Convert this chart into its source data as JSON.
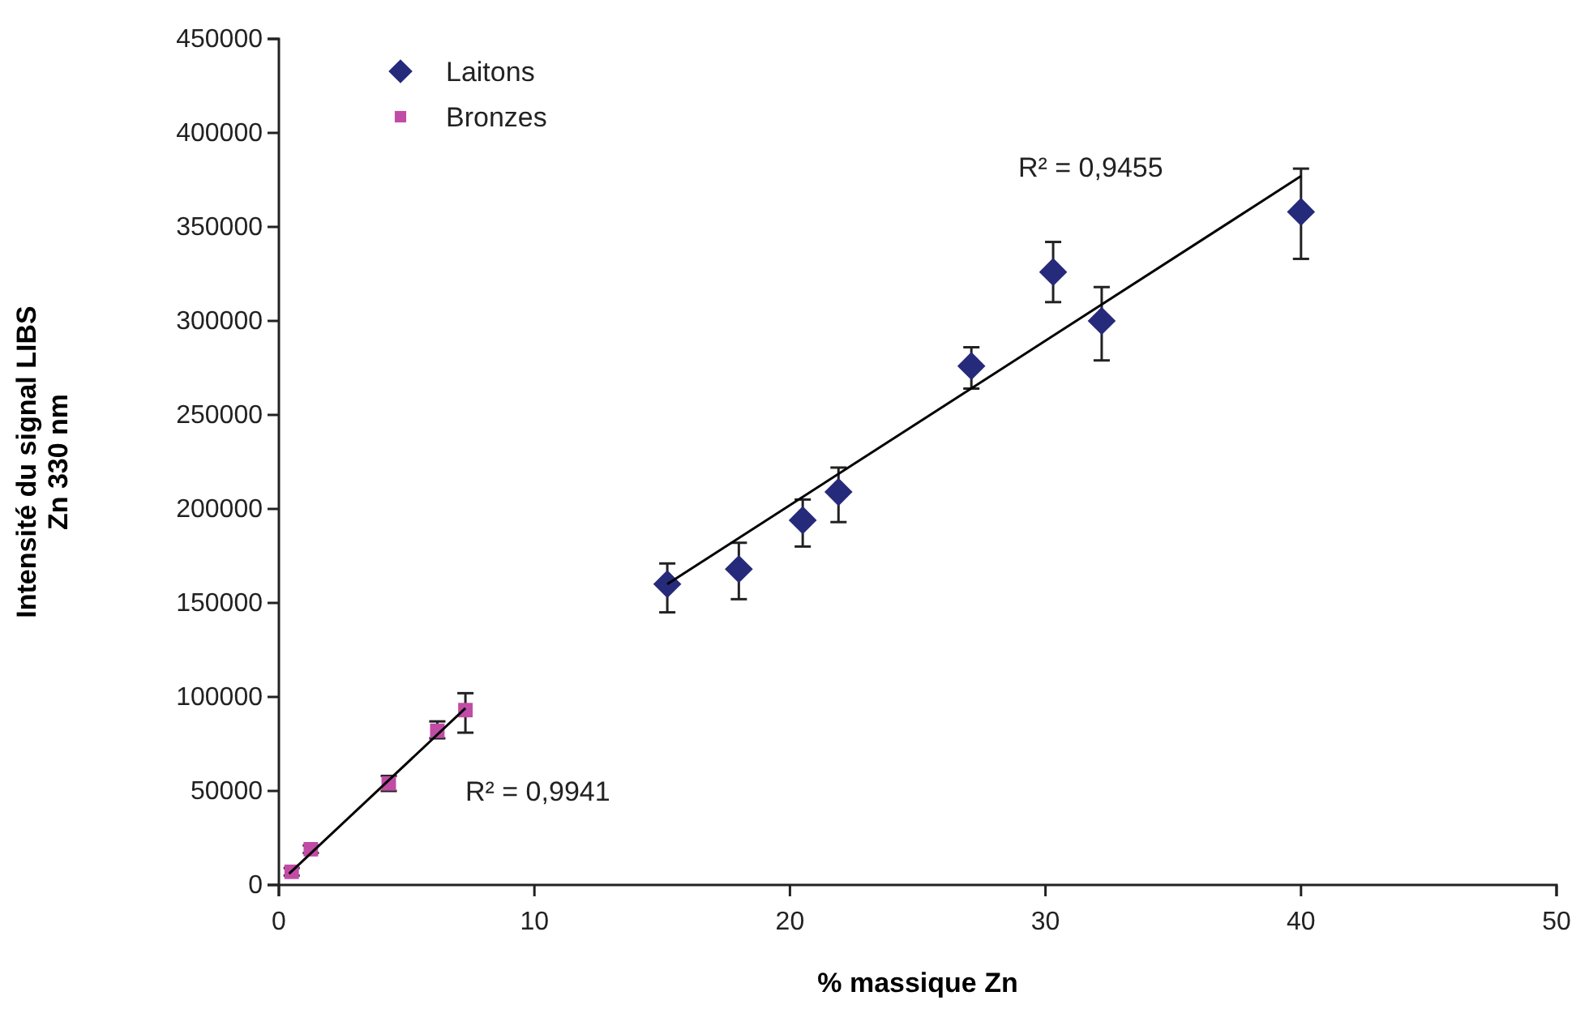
{
  "chart_data": {
    "type": "scatter",
    "xlabel": "% massique Zn",
    "ylabel": "Intensité du signal LIBS\nZn 330 nm",
    "xlim": [
      0,
      50
    ],
    "xticks": [
      0,
      10,
      20,
      30,
      40,
      50
    ],
    "ylim": [
      0,
      450000
    ],
    "yticks": [
      0,
      50000,
      100000,
      150000,
      200000,
      250000,
      300000,
      350000,
      400000,
      450000
    ],
    "grid": false,
    "legend": "top left",
    "series": [
      {
        "name": "Laitons",
        "marker": "diamond",
        "color": "#262a7a",
        "x": [
          15.2,
          18.0,
          20.5,
          21.9,
          27.1,
          30.3,
          32.2,
          40.0
        ],
        "values": [
          160000,
          168000,
          194000,
          209000,
          276000,
          326000,
          300000,
          358000
        ],
        "errors": [
          [
            145000,
            171000
          ],
          [
            152000,
            182000
          ],
          [
            180000,
            205000
          ],
          [
            193000,
            222000
          ],
          [
            264000,
            286000
          ],
          [
            310000,
            342000
          ],
          [
            279000,
            318000
          ],
          [
            333000,
            381000
          ]
        ]
      },
      {
        "name": "Bronzes",
        "marker": "square",
        "color": "#c04ca6",
        "x": [
          0.5,
          1.25,
          4.3,
          6.2,
          7.3
        ],
        "values": [
          7000,
          19000,
          54000,
          82000,
          93000
        ],
        "errors": [
          2000,
          2000,
          4000,
          [
            78000,
            87000
          ],
          [
            81000,
            102000
          ]
        ]
      },
      {
        "type": "line",
        "marker": "none",
        "color": "#000000",
        "x": [
          15.2,
          40.0
        ],
        "values": [
          160000,
          377000
        ]
      },
      {
        "type": "line",
        "marker": "none",
        "color": "#000000",
        "x": [
          0.4,
          7.3
        ],
        "values": [
          6000,
          94000
        ]
      }
    ],
    "annotations": [
      "R² = 0,9941",
      "R² = 0,9455"
    ]
  }
}
